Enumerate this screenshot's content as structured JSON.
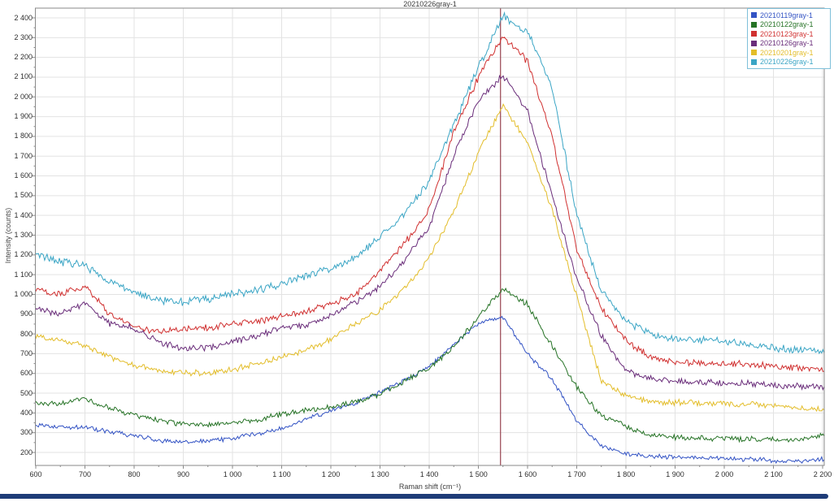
{
  "window": {
    "bottom_bar_color": "#1e3c78"
  },
  "chart_data": {
    "type": "line",
    "title": "20210226gray-1",
    "xlabel": "Raman shift (cm⁻¹)",
    "ylabel": "Intensity (counts)",
    "xlim": [
      598,
      2212
    ],
    "ylim": [
      134,
      2449
    ],
    "x_ticks": [
      600,
      700,
      800,
      900,
      1000,
      1100,
      1200,
      1300,
      1400,
      1500,
      1600,
      1700,
      1800,
      1900,
      2000,
      2100,
      2200
    ],
    "y_ticks": [
      200,
      300,
      400,
      500,
      600,
      700,
      800,
      900,
      1000,
      1100,
      1200,
      1300,
      1400,
      1500,
      1600,
      1700,
      1800,
      1900,
      2000,
      2100,
      2200,
      2300,
      2400
    ],
    "tick_format": "space-thousands",
    "grid": true,
    "grid_color": "#e3e3e3",
    "axis_color": "#8a8a8a",
    "legend_position": "top-right",
    "marker_line_x": 1545,
    "marker_line_color": "#97424f",
    "keypoint_x": [
      600,
      650,
      700,
      750,
      800,
      850,
      900,
      950,
      1000,
      1050,
      1100,
      1150,
      1200,
      1250,
      1300,
      1350,
      1400,
      1450,
      1500,
      1550,
      1600,
      1650,
      1700,
      1750,
      1800,
      1850,
      1900,
      1950,
      2000,
      2050,
      2100,
      2150,
      2200
    ],
    "series": [
      {
        "name": "20210119gray-1",
        "color": "#3353c4",
        "noise": 9,
        "values": [
          335,
          330,
          325,
          305,
          285,
          262,
          252,
          258,
          272,
          295,
          320,
          368,
          410,
          450,
          505,
          565,
          635,
          745,
          855,
          885,
          700,
          570,
          360,
          230,
          195,
          182,
          175,
          172,
          170,
          166,
          160,
          155,
          168
        ]
      },
      {
        "name": "20210122gray-1",
        "color": "#267326",
        "noise": 11,
        "values": [
          450,
          445,
          475,
          425,
          390,
          362,
          345,
          340,
          350,
          362,
          395,
          415,
          428,
          455,
          495,
          560,
          628,
          735,
          885,
          1030,
          950,
          740,
          530,
          385,
          330,
          288,
          275,
          272,
          270,
          268,
          264,
          260,
          288
        ]
      },
      {
        "name": "20210123gray-1",
        "color": "#d03030",
        "noise": 13,
        "values": [
          1020,
          1000,
          1040,
          900,
          835,
          812,
          820,
          830,
          850,
          862,
          890,
          915,
          950,
          1000,
          1120,
          1260,
          1430,
          1820,
          2100,
          2310,
          2180,
          1800,
          1230,
          930,
          770,
          680,
          655,
          652,
          650,
          645,
          637,
          627,
          620
        ]
      },
      {
        "name": "20210126gray-1",
        "color": "#6a2d7a",
        "noise": 13,
        "values": [
          930,
          905,
          950,
          855,
          830,
          760,
          725,
          730,
          765,
          790,
          830,
          845,
          890,
          960,
          1040,
          1175,
          1340,
          1700,
          1980,
          2110,
          1930,
          1500,
          1080,
          790,
          615,
          575,
          560,
          556,
          553,
          550,
          542,
          536,
          530
        ]
      },
      {
        "name": "20210201gray-1",
        "color": "#e3bd2a",
        "noise": 12,
        "values": [
          790,
          765,
          740,
          685,
          640,
          615,
          605,
          600,
          618,
          650,
          680,
          715,
          775,
          850,
          920,
          1030,
          1185,
          1420,
          1720,
          1960,
          1770,
          1430,
          990,
          560,
          490,
          455,
          452,
          450,
          448,
          444,
          436,
          425,
          415
        ]
      },
      {
        "name": "20210226gray-1",
        "color": "#3aa5c5",
        "noise": 16,
        "values": [
          1200,
          1165,
          1150,
          1060,
          1010,
          972,
          962,
          975,
          1000,
          1022,
          1050,
          1090,
          1130,
          1185,
          1300,
          1410,
          1570,
          1860,
          2150,
          2410,
          2330,
          2050,
          1400,
          1020,
          865,
          800,
          772,
          768,
          762,
          745,
          728,
          715,
          710
        ]
      }
    ]
  }
}
